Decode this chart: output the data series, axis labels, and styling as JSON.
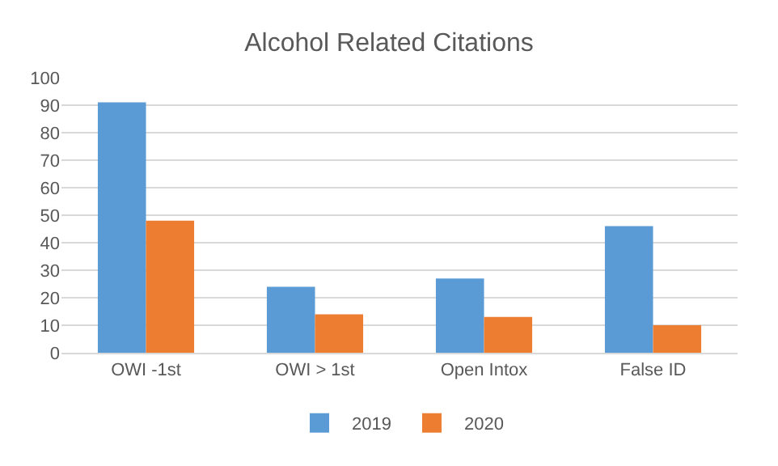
{
  "chart_data": {
    "type": "bar",
    "title": "Alcohol Related Citations",
    "categories": [
      "OWI -1st",
      "OWI > 1st",
      "Open Intox",
      "False ID"
    ],
    "series": [
      {
        "name": "2019",
        "color": "#5b9bd5",
        "values": [
          91,
          24,
          27,
          46
        ]
      },
      {
        "name": "2020",
        "color": "#ed7d31",
        "values": [
          48,
          14,
          13,
          10
        ]
      }
    ],
    "ylim": [
      0,
      100
    ],
    "yticks": [
      0,
      10,
      20,
      30,
      40,
      50,
      60,
      70,
      80,
      90,
      100
    ],
    "grid": "y",
    "legend": "bottom"
  }
}
